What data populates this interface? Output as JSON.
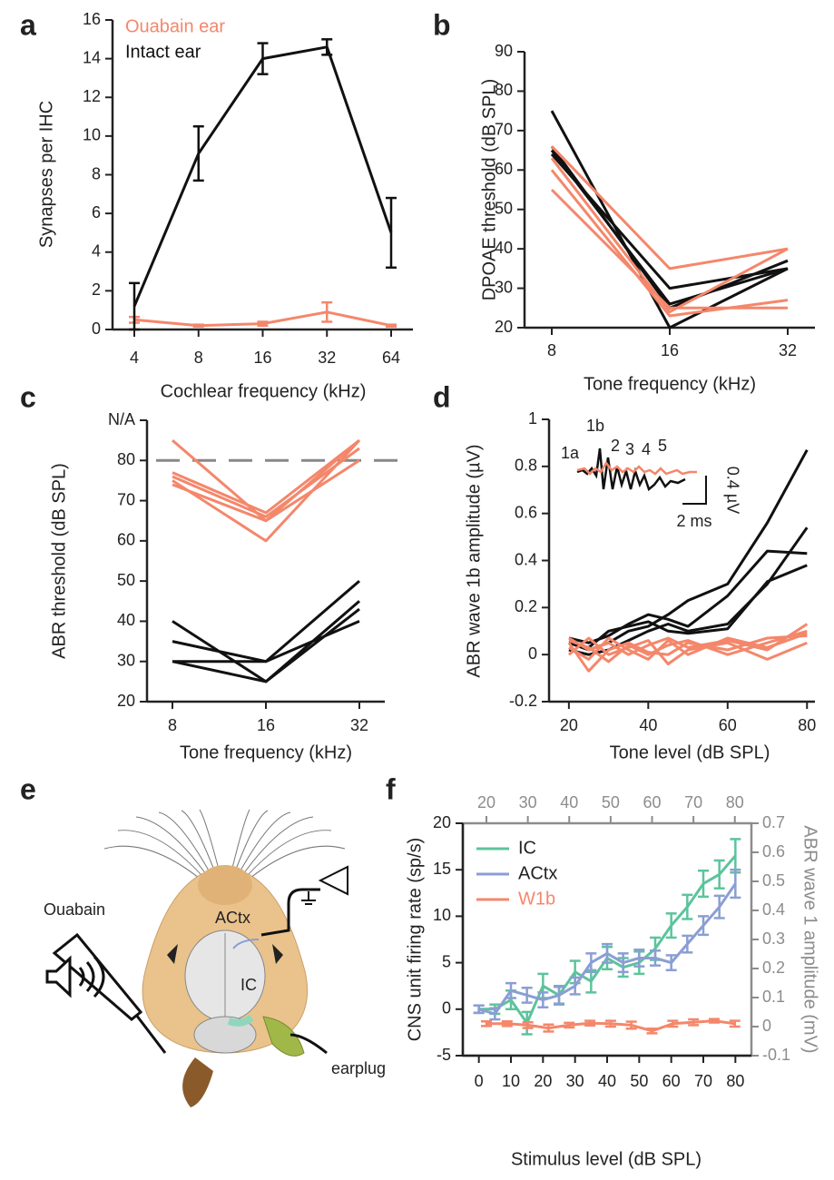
{
  "chart_data": [
    {
      "type": "line",
      "panel_label": "a",
      "ylabel": "Synapses per IHC",
      "xlabel": "Cochlear frequency (kHz)",
      "categories": [
        "4",
        "8",
        "16",
        "32",
        "64"
      ],
      "ylim": [
        0,
        16
      ],
      "yticks": [
        0,
        2,
        4,
        6,
        8,
        10,
        12,
        14,
        16
      ],
      "legend": "upper left",
      "series": [
        {
          "name": "Ouabain ear",
          "color": "#f4876b",
          "values": [
            0.5,
            0.2,
            0.3,
            0.9,
            0.2
          ],
          "errors": [
            0.15,
            0.05,
            0.1,
            0.5,
            0.05
          ]
        },
        {
          "name": "Intact ear",
          "color": "#111111",
          "values": [
            1.2,
            9.1,
            14.0,
            14.6,
            5.0
          ],
          "errors": [
            1.2,
            1.4,
            0.8,
            0.4,
            1.8
          ]
        }
      ]
    },
    {
      "type": "line",
      "panel_label": "b",
      "ylabel": "DPOAE threshold (dB SPL)",
      "xlabel": "Tone frequency (kHz)",
      "categories": [
        "8",
        "16",
        "32"
      ],
      "ylim": [
        20,
        90
      ],
      "yticks": [
        20,
        30,
        40,
        50,
        60,
        70,
        80,
        90
      ],
      "series": [
        {
          "color": "#111111",
          "values": [
            75,
            20,
            35
          ]
        },
        {
          "color": "#111111",
          "values": [
            66,
            25,
            37
          ]
        },
        {
          "color": "#111111",
          "values": [
            65,
            26,
            35
          ]
        },
        {
          "color": "#111111",
          "values": [
            64,
            30,
            35
          ]
        },
        {
          "color": "#f4876b",
          "values": [
            66,
            35,
            40
          ]
        },
        {
          "color": "#f4876b",
          "values": [
            63,
            24,
            40
          ]
        },
        {
          "color": "#f4876b",
          "values": [
            60,
            23,
            27
          ]
        },
        {
          "color": "#f4876b",
          "values": [
            55,
            25,
            25
          ]
        }
      ]
    },
    {
      "type": "line",
      "panel_label": "c",
      "ylabel": "ABR threshold (dB SPL)",
      "xlabel": "Tone frequency (kHz)",
      "categories": [
        "8",
        "16",
        "32"
      ],
      "ylim": [
        20,
        90
      ],
      "yticks": [
        20,
        30,
        40,
        50,
        60,
        70,
        80,
        {
          "value": 90,
          "label": "N/A"
        }
      ],
      "reference_line": 80,
      "series": [
        {
          "color": "#f4876b",
          "values": [
            85,
            65,
            85
          ]
        },
        {
          "color": "#f4876b",
          "values": [
            75,
            60,
            85
          ]
        },
        {
          "color": "#f4876b",
          "values": [
            76,
            66,
            83
          ]
        },
        {
          "color": "#f4876b",
          "values": [
            74,
            65,
            80
          ]
        },
        {
          "color": "#f4876b",
          "values": [
            77,
            67,
            85
          ]
        },
        {
          "color": "#111111",
          "values": [
            40,
            25,
            45
          ]
        },
        {
          "color": "#111111",
          "values": [
            35,
            30,
            40
          ]
        },
        {
          "color": "#111111",
          "values": [
            30,
            30,
            50
          ]
        },
        {
          "color": "#111111",
          "values": [
            30,
            25,
            43
          ]
        }
      ]
    },
    {
      "type": "line",
      "panel_label": "d",
      "ylabel": "ABR wave 1b amplitude (µV)",
      "xlabel": "Tone level (dB SPL)",
      "x": [
        20,
        25,
        30,
        35,
        40,
        45,
        50,
        60,
        70,
        80
      ],
      "xlim": [
        15,
        82
      ],
      "xticks": [
        20,
        40,
        60,
        80
      ],
      "ylim": [
        -0.2,
        1
      ],
      "yticks": [
        -0.2,
        0,
        0.2,
        0.4,
        0.6,
        0.8,
        1
      ],
      "inset_labels": [
        "1a",
        "1b",
        "2",
        "3",
        "4",
        "5"
      ],
      "inset_scale": [
        "0.4 µV",
        "2 ms"
      ],
      "series": [
        {
          "color": "#111111",
          "values": [
            0.05,
            0.02,
            0.05,
            0.1,
            0.12,
            0.17,
            0.23,
            0.3,
            0.56,
            0.87
          ]
        },
        {
          "color": "#111111",
          "values": [
            0.07,
            0.05,
            0.08,
            0.13,
            0.17,
            0.15,
            0.12,
            0.25,
            0.44,
            0.43
          ]
        },
        {
          "color": "#111111",
          "values": [
            0.02,
            0.0,
            0.02,
            0.06,
            0.1,
            0.13,
            0.1,
            0.13,
            0.3,
            0.54
          ]
        },
        {
          "color": "#111111",
          "values": [
            0.05,
            0.03,
            0.1,
            0.12,
            0.14,
            0.1,
            0.09,
            0.11,
            0.31,
            0.38
          ]
        },
        {
          "color": "#f4876b",
          "values": [
            0.07,
            0.02,
            0.05,
            0.0,
            0.04,
            0.07,
            0.03,
            0.06,
            0.02,
            0.13
          ]
        },
        {
          "color": "#f4876b",
          "values": [
            0.05,
            -0.07,
            0.02,
            0.05,
            0.01,
            0.0,
            0.05,
            0.02,
            0.07,
            0.08
          ]
        },
        {
          "color": "#f4876b",
          "values": [
            0.0,
            0.07,
            0.0,
            0.03,
            0.06,
            -0.04,
            0.02,
            0.05,
            -0.02,
            0.05
          ]
        },
        {
          "color": "#f4876b",
          "values": [
            0.06,
            0.03,
            -0.03,
            0.04,
            0.0,
            0.04,
            0.06,
            0.0,
            0.05,
            0.1
          ]
        },
        {
          "color": "#f4876b",
          "values": [
            0.03,
            -0.02,
            0.07,
            0.02,
            -0.02,
            0.06,
            0.0,
            0.07,
            0.03,
            0.09
          ]
        }
      ]
    },
    {
      "type": "line",
      "panel_label": "f",
      "ylabel": "CNS unit firing rate (sp/s)",
      "xlabel": "Stimulus level (dB SPL)",
      "y2label": "ABR wave 1 amplitude (mV)",
      "y2color": "#8c8c8c",
      "xlim": [
        -5,
        85
      ],
      "xticks": [
        0,
        10,
        20,
        30,
        40,
        50,
        60,
        70,
        80
      ],
      "x2lim": [
        14.3,
        84
      ],
      "x2ticks": [
        20,
        30,
        40,
        50,
        60,
        70,
        80
      ],
      "ylim": [
        -5,
        20
      ],
      "yticks": [
        -5,
        0,
        5,
        10,
        15,
        20
      ],
      "y2lim": [
        -0.1,
        0.7
      ],
      "y2ticks": [
        -0.1,
        0,
        0.1,
        0.2,
        0.3,
        0.4,
        0.5,
        0.6,
        0.7
      ],
      "legend": "upper left",
      "series": [
        {
          "name": "IC",
          "color": "#5dc39c",
          "x": [
            0,
            5,
            10,
            15,
            20,
            25,
            30,
            35,
            40,
            45,
            50,
            55,
            60,
            65,
            70,
            75,
            80
          ],
          "values": [
            0,
            0,
            1,
            -1.5,
            2.5,
            1.5,
            4,
            3,
            5.5,
            4.5,
            5,
            6.5,
            9,
            11,
            13.5,
            14.5,
            16.5
          ],
          "errors": [
            0.4,
            0.5,
            1.0,
            1.2,
            1.3,
            1.0,
            1.2,
            1.2,
            1.2,
            1.0,
            1.2,
            1.2,
            1.3,
            1.3,
            1.4,
            1.5,
            1.8
          ]
        },
        {
          "name": "ACtx",
          "color": "#8b9ed3",
          "x": [
            0,
            5,
            10,
            15,
            20,
            25,
            30,
            35,
            40,
            45,
            50,
            55,
            60,
            65,
            70,
            75,
            80
          ],
          "values": [
            0,
            -0.5,
            2,
            1.5,
            1,
            1.5,
            2.5,
            5,
            6,
            5,
            5.5,
            5.5,
            5,
            7,
            9,
            11,
            13.5
          ],
          "errors": [
            0.4,
            0.6,
            0.8,
            0.8,
            0.8,
            0.9,
            0.9,
            1.0,
            1.0,
            1.0,
            0.9,
            0.8,
            0.8,
            0.9,
            1.0,
            1.2,
            1.5
          ]
        },
        {
          "name": "W1b",
          "color": "#f4876b",
          "axis": "y2",
          "xaxis": "x2",
          "x": [
            20,
            25,
            30,
            35,
            40,
            45,
            50,
            55,
            60,
            65,
            70,
            75,
            80
          ],
          "values": [
            0.01,
            0.01,
            0.005,
            -0.005,
            0.005,
            0.012,
            0.01,
            0.005,
            -0.015,
            0.01,
            0.015,
            0.02,
            0.01
          ],
          "errors": [
            0.008,
            0.008,
            0.01,
            0.012,
            0.008,
            0.008,
            0.01,
            0.012,
            0.008,
            0.01,
            0.01,
            0.006,
            0.01
          ]
        }
      ]
    }
  ],
  "diagram": {
    "panel_label": "e",
    "labels": [
      "Ouabain",
      "ACtx",
      "IC",
      "earplug"
    ]
  }
}
